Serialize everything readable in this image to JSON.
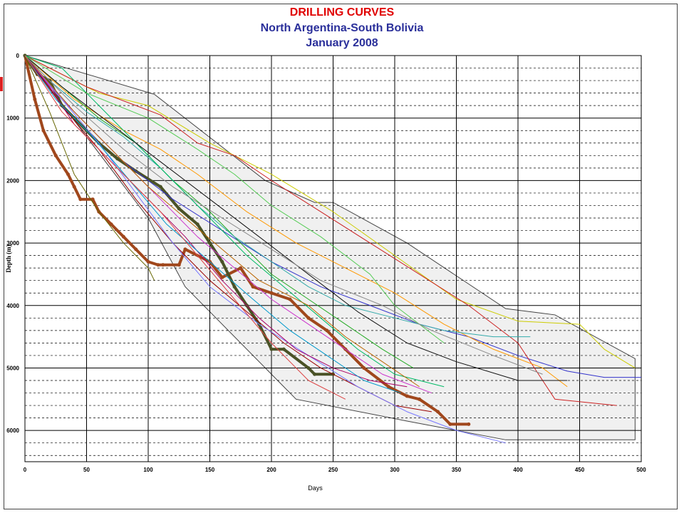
{
  "colors": {
    "title1": "#e00000",
    "title2": "#2a2f9a",
    "envelope_fill": "#f0f0f0",
    "envelope_line": "#444444",
    "highlight_brown": "#a0471c",
    "highlight_olive": "#4a5226"
  },
  "chart_data": {
    "type": "line",
    "title": "DRILLING CURVES",
    "subtitle": "North Argentina-South Bolivia",
    "subtitle2": "January 2008",
    "xlabel": "Days",
    "ylabel": "Depth (m)",
    "xlim": [
      0,
      500
    ],
    "ylim": [
      0,
      6500
    ],
    "y_inverted": true,
    "x_ticks": [
      0,
      50,
      100,
      150,
      200,
      250,
      300,
      350,
      400,
      450,
      500
    ],
    "y_ticks": [
      0,
      1000,
      2000,
      3000,
      4000,
      5000,
      6000
    ],
    "grid": true,
    "envelope": {
      "x": [
        0,
        105,
        195,
        235,
        250,
        310,
        390,
        430,
        495,
        495,
        390,
        310,
        220,
        130,
        100,
        0
      ],
      "y": [
        0,
        620,
        2000,
        2350,
        2350,
        3000,
        4050,
        4150,
        4850,
        6150,
        6150,
        5850,
        5500,
        3700,
        2600,
        0
      ]
    },
    "series": [
      {
        "color": "#a0471c",
        "width": 4,
        "x": [
          0,
          8,
          15,
          25,
          35,
          40,
          45,
          55,
          60,
          70,
          80,
          90,
          100,
          108,
          112,
          125,
          130,
          150,
          160,
          175,
          185,
          200,
          215,
          230,
          245,
          260,
          275,
          295,
          310,
          320,
          335,
          345,
          360
        ],
        "y": [
          0,
          700,
          1200,
          1600,
          1900,
          2100,
          2300,
          2300,
          2500,
          2700,
          2900,
          3100,
          3300,
          3350,
          3350,
          3350,
          3100,
          3300,
          3550,
          3400,
          3700,
          3800,
          3900,
          4200,
          4400,
          4700,
          5000,
          5300,
          5450,
          5500,
          5700,
          5900,
          5900
        ]
      },
      {
        "color": "#4a5226",
        "width": 4,
        "x": [
          0,
          10,
          20,
          30,
          40,
          50,
          60,
          75,
          90,
          110,
          125,
          140,
          150,
          160,
          170,
          180,
          190,
          200,
          210,
          230,
          235,
          250
        ],
        "y": [
          0,
          300,
          400,
          800,
          1000,
          1200,
          1400,
          1650,
          1850,
          2100,
          2450,
          2700,
          3000,
          3300,
          3700,
          4000,
          4300,
          4700,
          4700,
          5000,
          5100,
          5100
        ]
      },
      {
        "color": "#3333cc",
        "width": 1,
        "x": [
          0,
          40,
          80,
          120,
          160,
          200,
          240,
          280,
          320,
          360,
          400,
          440,
          470,
          500
        ],
        "y": [
          0,
          900,
          1700,
          2300,
          2800,
          3300,
          3700,
          4000,
          4300,
          4500,
          4800,
          5050,
          5150,
          5150
        ]
      },
      {
        "color": "#cccc00",
        "width": 1,
        "x": [
          0,
          30,
          60,
          100,
          150,
          200,
          250,
          300,
          350,
          400,
          450,
          470,
          495
        ],
        "y": [
          0,
          300,
          600,
          800,
          1400,
          1900,
          2500,
          3200,
          3900,
          4250,
          4300,
          4700,
          5000
        ]
      },
      {
        "color": "#cc2222",
        "width": 1,
        "x": [
          0,
          50,
          90,
          110,
          140,
          170,
          200,
          240,
          280,
          320,
          360,
          400,
          430,
          480
        ],
        "y": [
          0,
          500,
          800,
          950,
          1400,
          1600,
          2000,
          2500,
          3000,
          3500,
          4000,
          4600,
          5500,
          5600
        ]
      },
      {
        "color": "#ff9900",
        "width": 1,
        "x": [
          0,
          40,
          80,
          110,
          140,
          180,
          220,
          260,
          300,
          340,
          380,
          420,
          440
        ],
        "y": [
          0,
          700,
          1200,
          1500,
          1900,
          2500,
          3000,
          3400,
          3800,
          4300,
          4700,
          5000,
          5300
        ]
      },
      {
        "color": "#22aa22",
        "width": 1,
        "x": [
          0,
          30,
          60,
          90,
          120,
          150,
          180,
          200,
          230,
          260,
          290,
          315
        ],
        "y": [
          0,
          500,
          1000,
          1400,
          2000,
          2500,
          3100,
          3500,
          3900,
          4300,
          4700,
          5000
        ]
      },
      {
        "color": "#cc33cc",
        "width": 1,
        "x": [
          0,
          25,
          50,
          80,
          110,
          140,
          170,
          200,
          230,
          260,
          290,
          330
        ],
        "y": [
          0,
          600,
          1100,
          1700,
          2300,
          2900,
          3400,
          3900,
          4300,
          4700,
          5100,
          5400
        ]
      },
      {
        "color": "#33aaaa",
        "width": 1,
        "x": [
          0,
          20,
          50,
          80,
          110,
          140,
          170,
          200,
          230,
          260,
          300,
          340,
          380,
          410
        ],
        "y": [
          0,
          400,
          900,
          1300,
          1800,
          2400,
          2900,
          3300,
          3700,
          4000,
          4200,
          4400,
          4500,
          4500
        ]
      },
      {
        "color": "#666600",
        "width": 1,
        "x": [
          0,
          20,
          40,
          60,
          80,
          100,
          105
        ],
        "y": [
          0,
          900,
          1900,
          2500,
          3000,
          3400,
          3600
        ]
      },
      {
        "color": "#990000",
        "width": 1,
        "x": [
          0,
          30,
          60,
          90,
          120,
          150,
          180,
          210,
          240,
          270,
          300,
          330
        ],
        "y": [
          0,
          800,
          1500,
          2300,
          3000,
          3600,
          4100,
          4600,
          5000,
          5300,
          5600,
          5700
        ]
      },
      {
        "color": "#7777ff",
        "width": 1,
        "x": [
          0,
          30,
          60,
          90,
          120,
          150,
          190,
          230,
          270,
          310,
          350,
          390
        ],
        "y": [
          0,
          700,
          1400,
          2200,
          3000,
          3700,
          4300,
          4800,
          5300,
          5700,
          6000,
          6200
        ]
      },
      {
        "color": "#00bb66",
        "width": 1,
        "x": [
          0,
          15,
          30,
          60,
          90,
          120,
          150,
          180,
          210,
          240,
          270,
          300,
          340
        ],
        "y": [
          0,
          100,
          200,
          800,
          1400,
          2000,
          2600,
          3200,
          3700,
          4200,
          4700,
          5100,
          5300
        ]
      },
      {
        "color": "#bb6600",
        "width": 1,
        "x": [
          0,
          40,
          70,
          100,
          130,
          160,
          190,
          230,
          260,
          290,
          320
        ],
        "y": [
          0,
          900,
          1500,
          2100,
          2600,
          3100,
          3600,
          4000,
          4500,
          4900,
          5300
        ]
      },
      {
        "color": "#111111",
        "width": 1,
        "x": [
          0,
          30,
          70,
          110,
          150,
          190,
          230,
          270,
          310,
          350,
          400,
          440
        ],
        "y": [
          0,
          500,
          1100,
          1700,
          2300,
          2900,
          3500,
          4100,
          4600,
          4900,
          5200,
          5200
        ]
      },
      {
        "color": "#55cc55",
        "width": 1,
        "x": [
          0,
          50,
          100,
          140,
          170,
          200,
          240,
          280,
          300,
          340
        ],
        "y": [
          0,
          600,
          1000,
          1500,
          1900,
          2400,
          2900,
          3500,
          4000,
          4600
        ]
      },
      {
        "color": "#aa0066",
        "width": 1,
        "x": [
          0,
          20,
          40,
          70,
          100,
          130,
          160,
          190,
          220,
          250,
          280,
          310
        ],
        "y": [
          0,
          500,
          1100,
          1700,
          2300,
          2900,
          3600,
          4200,
          4700,
          5000,
          5200,
          5300
        ]
      },
      {
        "color": "#0099cc",
        "width": 1,
        "x": [
          0,
          25,
          55,
          85,
          115,
          150,
          185,
          215,
          245,
          275,
          305
        ],
        "y": [
          0,
          700,
          1300,
          2000,
          2700,
          3300,
          3900,
          4400,
          4800,
          5200,
          5400
        ]
      },
      {
        "color": "#888888",
        "width": 1,
        "x": [
          0,
          40,
          80,
          120,
          160,
          200,
          240,
          290,
          330,
          380,
          420
        ],
        "y": [
          0,
          800,
          1500,
          2100,
          2600,
          3100,
          3600,
          4000,
          4400,
          4800,
          5100
        ]
      },
      {
        "color": "#dd4444",
        "width": 1,
        "x": [
          0,
          30,
          70,
          110,
          140,
          170,
          200,
          230,
          260
        ],
        "y": [
          0,
          900,
          1700,
          2500,
          3200,
          3900,
          4600,
          5200,
          5500
        ]
      }
    ]
  }
}
